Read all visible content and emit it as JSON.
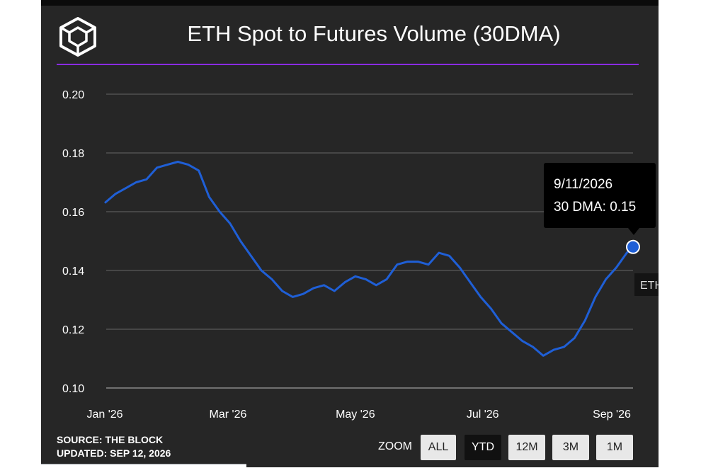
{
  "title": "ETH Spot to Futures Volume (30DMA)",
  "colors": {
    "background": "#262626",
    "line": "#1f5fd6",
    "accent_rule": "#8a2be2",
    "grid": "#666666",
    "text": "#ffffff"
  },
  "logo_icon": "the-block-cube-logo",
  "source": {
    "line1": "SOURCE: THE BLOCK",
    "line2": "UPDATED: SEP 12, 2026"
  },
  "zoom": {
    "label": "ZOOM",
    "buttons": [
      "ALL",
      "YTD",
      "12M",
      "3M",
      "1M"
    ],
    "selected": "YTD"
  },
  "tooltip": {
    "date": "9/11/2026",
    "value_text": "30 DMA: 0.15"
  },
  "legend_fragment": "ETH",
  "chart_data": {
    "type": "line",
    "ylim": [
      0.1,
      0.2
    ],
    "yticks": [
      "0.10",
      "0.12",
      "0.14",
      "0.16",
      "0.18",
      "0.20"
    ],
    "xticks": [
      "Jan '26",
      "Mar '26",
      "May '26",
      "Jul '26",
      "Sep '26"
    ],
    "grid": true,
    "series": [
      {
        "name": "30 DMA",
        "x": [
          "2026-01-01",
          "2026-01-06",
          "2026-01-11",
          "2026-01-16",
          "2026-01-21",
          "2026-01-26",
          "2026-01-31",
          "2026-02-05",
          "2026-02-10",
          "2026-02-15",
          "2026-02-20",
          "2026-02-25",
          "2026-03-02",
          "2026-03-07",
          "2026-03-12",
          "2026-03-17",
          "2026-03-22",
          "2026-03-27",
          "2026-04-01",
          "2026-04-06",
          "2026-04-11",
          "2026-04-16",
          "2026-04-21",
          "2026-04-26",
          "2026-05-01",
          "2026-05-06",
          "2026-05-11",
          "2026-05-16",
          "2026-05-21",
          "2026-05-26",
          "2026-05-31",
          "2026-06-05",
          "2026-06-10",
          "2026-06-15",
          "2026-06-20",
          "2026-06-25",
          "2026-06-30",
          "2026-07-05",
          "2026-07-10",
          "2026-07-15",
          "2026-07-20",
          "2026-07-25",
          "2026-07-30",
          "2026-08-04",
          "2026-08-09",
          "2026-08-14",
          "2026-08-19",
          "2026-08-24",
          "2026-08-29",
          "2026-09-03",
          "2026-09-08",
          "2026-09-11"
        ],
        "values": [
          0.163,
          0.166,
          0.168,
          0.17,
          0.171,
          0.175,
          0.176,
          0.177,
          0.176,
          0.174,
          0.165,
          0.16,
          0.156,
          0.15,
          0.145,
          0.14,
          0.137,
          0.133,
          0.131,
          0.132,
          0.134,
          0.135,
          0.133,
          0.136,
          0.138,
          0.137,
          0.135,
          0.137,
          0.142,
          0.143,
          0.143,
          0.142,
          0.146,
          0.145,
          0.141,
          0.136,
          0.131,
          0.127,
          0.122,
          0.119,
          0.116,
          0.114,
          0.111,
          0.113,
          0.114,
          0.117,
          0.123,
          0.131,
          0.137,
          0.141,
          0.146,
          0.148
        ]
      }
    ]
  }
}
